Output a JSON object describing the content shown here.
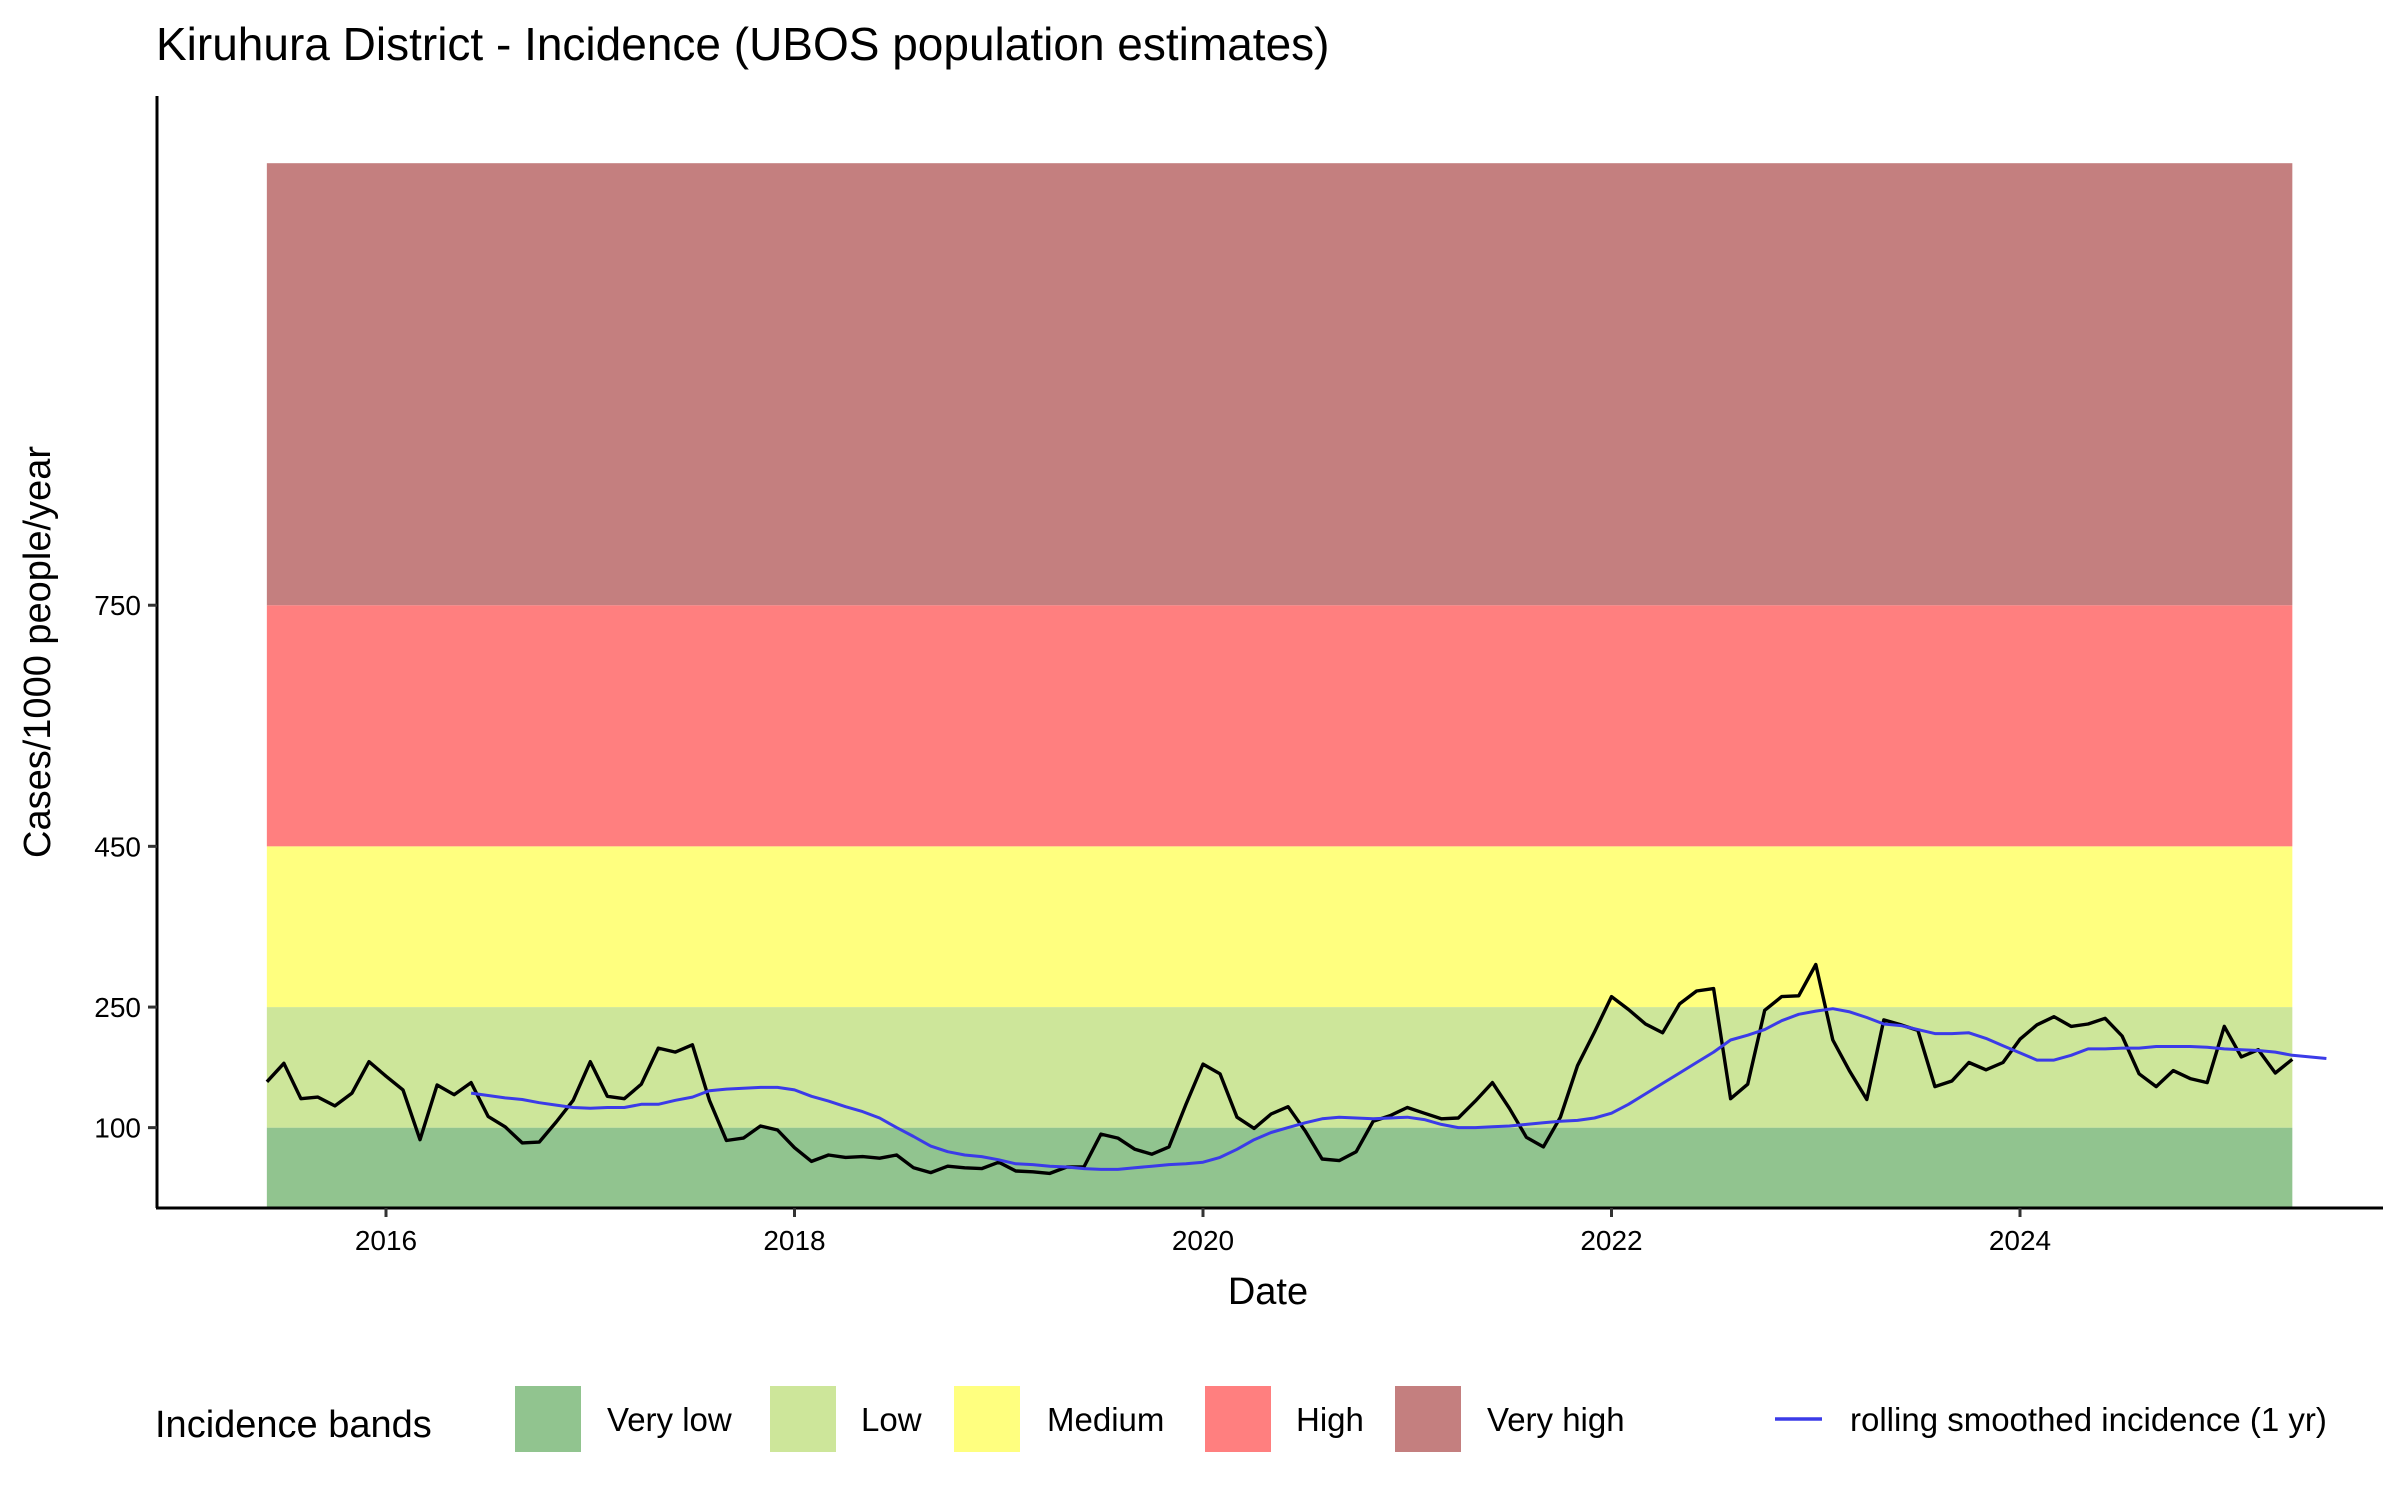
{
  "chart_data": {
    "type": "line",
    "title": "Kiruhura District - Incidence (UBOS population estimates)",
    "xlabel": "Date",
    "ylabel": "Cases/1000 people/year",
    "x_range": [
      "2015-01-01",
      "2025-12-31"
    ],
    "y_range": [
      0,
      1380
    ],
    "x_ticks": [
      "2016",
      "2018",
      "2020",
      "2022",
      "2024"
    ],
    "y_ticks": [
      100,
      250,
      450,
      750
    ],
    "bands": [
      {
        "name": "Very low",
        "from": 0,
        "to": 100,
        "color": "#91c48f"
      },
      {
        "name": "Low",
        "from": 100,
        "to": 250,
        "color": "#cde69a"
      },
      {
        "name": "Medium",
        "from": 250,
        "to": 450,
        "color": "#ffff7f"
      },
      {
        "name": "High",
        "from": 450,
        "to": 750,
        "color": "#ff7f7f"
      },
      {
        "name": "Very high",
        "from": 750,
        "to": 1300,
        "color": "#c47f7f"
      }
    ],
    "bands_x_range": [
      "2015-06-01",
      "2025-05-01"
    ],
    "series": [
      {
        "key": "monthly",
        "color": "#000000",
        "start": "2015-06",
        "values": [
          157,
          180,
          136,
          138,
          127,
          143,
          182,
          164,
          147,
          85,
          153,
          141,
          156,
          114,
          101,
          81,
          82,
          107,
          134,
          182,
          139,
          136,
          154,
          199,
          194,
          203,
          134,
          84,
          87,
          102,
          97,
          75,
          58,
          66,
          63,
          64,
          62,
          66,
          50,
          44,
          52,
          50,
          49,
          57,
          46,
          45,
          43,
          51,
          51,
          92,
          87,
          73,
          67,
          76,
          129,
          179,
          167,
          113,
          99,
          117,
          126,
          96,
          61,
          59,
          70,
          108,
          115,
          125,
          118,
          111,
          112,
          133,
          156,
          124,
          88,
          76,
          113,
          177,
          219,
          263,
          247,
          229,
          218,
          254,
          270,
          273,
          136,
          154,
          246,
          263,
          264,
          303,
          209,
          170,
          135,
          234,
          228,
          221,
          151,
          158,
          181,
          172,
          181,
          210,
          228,
          238,
          226,
          229,
          236,
          214,
          167,
          151,
          171,
          161,
          156,
          226,
          188,
          197,
          168,
          185
        ]
      },
      {
        "key": "smoothed",
        "name": "rolling smoothed incidence (1 yr)",
        "color": "#3b3be8",
        "start": "2016-06",
        "values": [
          143,
          140,
          137,
          135,
          131,
          128,
          125,
          124,
          125,
          125,
          129,
          129,
          134,
          138,
          146,
          148,
          149,
          150,
          150,
          147,
          139,
          133,
          126,
          120,
          112,
          100,
          89,
          77,
          70,
          66,
          64,
          60,
          55,
          54,
          52,
          51,
          49,
          48,
          48,
          50,
          52,
          54,
          55,
          57,
          63,
          73,
          85,
          94,
          100,
          106,
          111,
          113,
          112,
          111,
          112,
          113,
          110,
          104,
          100,
          100,
          101,
          102,
          104,
          106,
          108,
          109,
          112,
          118,
          129,
          142,
          155,
          168,
          181,
          194,
          209,
          215,
          222,
          233,
          241,
          245,
          248,
          244,
          237,
          229,
          227,
          222,
          217,
          217,
          218,
          211,
          202,
          193,
          184,
          184,
          190,
          198,
          198,
          199,
          199,
          201,
          201,
          201,
          200,
          198,
          197,
          196,
          194,
          190,
          188,
          186
        ]
      }
    ],
    "legend": {
      "title": "Incidence bands",
      "position": "bottom",
      "items": [
        "Very low",
        "Low",
        "Medium",
        "High",
        "Very high"
      ],
      "line_item": "rolling smoothed incidence (1 yr)"
    }
  }
}
